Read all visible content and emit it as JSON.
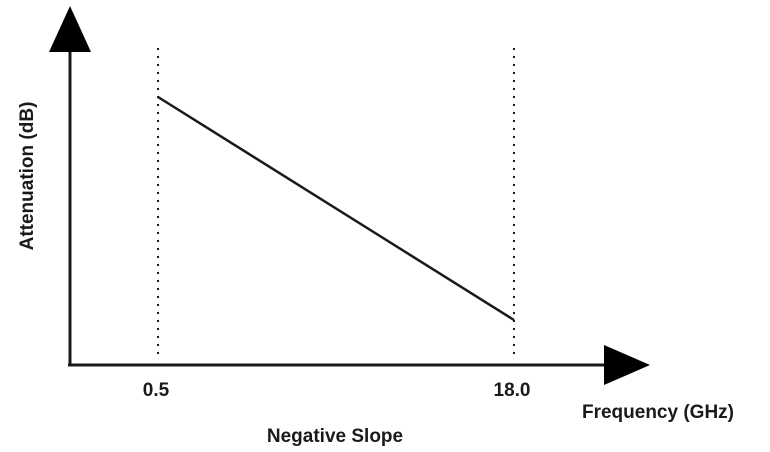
{
  "diagram": {
    "y_axis_label": "Attenuation (dB)",
    "x_axis_label": "Frequency (GHz)",
    "caption": "Negative Slope",
    "x_ticks": [
      "0.5",
      "18.0"
    ],
    "line_color": "#1a1a1a"
  }
}
